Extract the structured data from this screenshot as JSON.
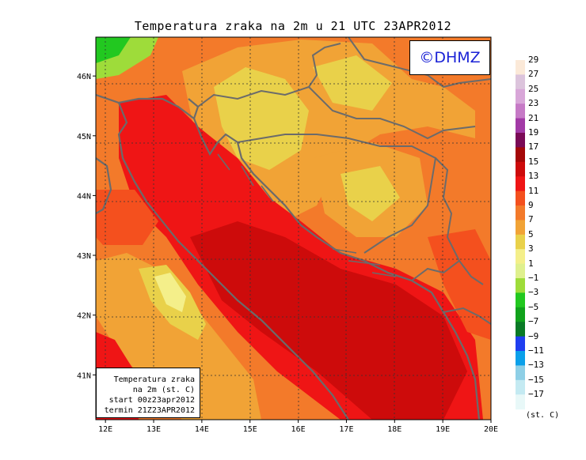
{
  "title": "Temperatura zraka na 2m u 21 UTC 23APR2012",
  "logo": "©DHMZ",
  "info_box": {
    "line1": "Temperatura zraka",
    "line2": "na 2m (st. C)",
    "line3": "start 00z23apr2012",
    "line4": "termin 21Z23APR2012"
  },
  "map": {
    "lon_range": [
      11.8,
      20.0
    ],
    "lat_range": [
      40.25,
      46.65
    ],
    "lon_ticks": [
      "12E",
      "13E",
      "14E",
      "15E",
      "16E",
      "17E",
      "18E",
      "19E",
      "20E"
    ],
    "lat_ticks": [
      "46N",
      "45N",
      "44N",
      "43N",
      "42N",
      "41N"
    ]
  },
  "colorbar": {
    "units": "(st. C)",
    "labels": [
      "29",
      "27",
      "25",
      "23",
      "21",
      "19",
      "17",
      "15",
      "13",
      "11",
      "9",
      "7",
      "5",
      "3",
      "1",
      "−1",
      "−3",
      "−5",
      "−7",
      "−9",
      "−11",
      "−13",
      "−15",
      "−17"
    ],
    "colors": [
      "#fbe9d8",
      "#dcc4dc",
      "#d8a6d8",
      "#c67ac6",
      "#a23aa6",
      "#7a0a56",
      "#a40808",
      "#cd0b0b",
      "#ef1515",
      "#f4501e",
      "#f37a2a",
      "#f1a336",
      "#e9d14a",
      "#f4ef8a",
      "#dff08e",
      "#9edc3a",
      "#22c820",
      "#11a21c",
      "#0a7a26",
      "#1f3ef0",
      "#0aa0ea",
      "#8ecfe6",
      "#c4eaf2",
      "#e8f8f8"
    ]
  }
}
